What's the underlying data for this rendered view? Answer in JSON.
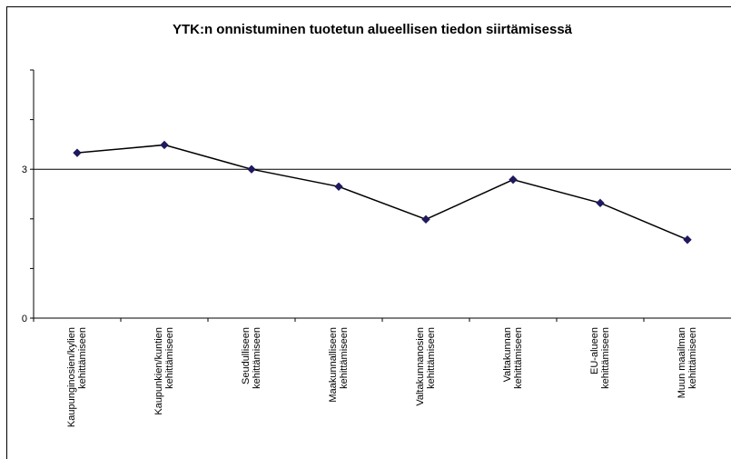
{
  "chart_data": {
    "type": "line",
    "title": "YTK:n onnistuminen tuotetun alueellisen tiedon siirtämisessä",
    "categories": [
      "Kaupunginosien/kylien kehittämiseen",
      "Kaupunkien/kuntien kehittämiseen",
      "Seudulliseen kehittämiseen",
      "Maakunnalliseen kehittämiseen",
      "Valtakunnanosien kehittämiseen",
      "Valtakunnan kehittämiseen",
      "EU-alueen kehittämiseen",
      "Muun maailman kehittämiseen"
    ],
    "values": [
      3.33,
      3.49,
      3.0,
      2.65,
      1.99,
      2.79,
      2.32,
      1.58
    ],
    "color": "#000000",
    "marker_color": "#1f1a5e",
    "ylim": [
      0,
      5
    ],
    "yticks": [
      0,
      3
    ],
    "yminor_ticks": [
      1,
      2,
      4,
      5
    ],
    "grid": true
  }
}
